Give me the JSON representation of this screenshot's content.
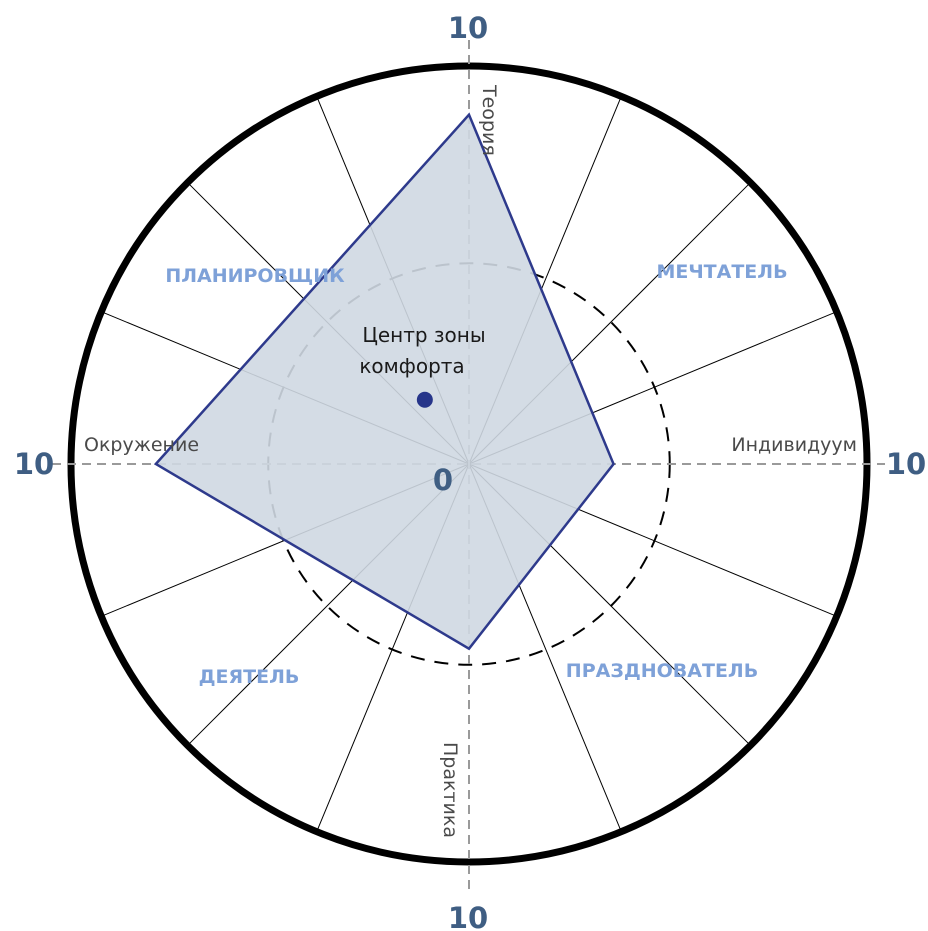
{
  "chart_data": {
    "type": "radar",
    "axes": [
      {
        "id": "top",
        "label": "Теория",
        "max_label": "10",
        "value": 8.7
      },
      {
        "id": "right",
        "label": "Индивидуум",
        "max_label": "10",
        "value": 3.6
      },
      {
        "id": "bottom",
        "label": "Практика",
        "max_label": "10",
        "value": 4.6
      },
      {
        "id": "left",
        "label": "Окружение",
        "max_label": "10",
        "value": 7.8
      }
    ],
    "scale": {
      "min": 0,
      "max": 10,
      "center_label": "0"
    },
    "comfort_zone_radius": 5,
    "comfort_center": {
      "x": -1.1,
      "y": 1.6,
      "label_line1": "Центр зоны",
      "label_line2": "комфорта"
    },
    "quadrants": {
      "top_left": "ПЛАНИРОВЩИК",
      "top_right": "МЕЧТАТЕЛЬ",
      "bottom_left": "ДЕЯТЕЛЬ",
      "bottom_right": "ПРАЗДНОВАТЕЛЬ"
    },
    "spokes": 16,
    "colors": {
      "polygon_fill": "#cfd8e2",
      "polygon_stroke": "#2e3a8c",
      "dot": "#26358a",
      "quadrant_label": "#7ea1d8",
      "scale_label": "#3f5e83"
    }
  }
}
